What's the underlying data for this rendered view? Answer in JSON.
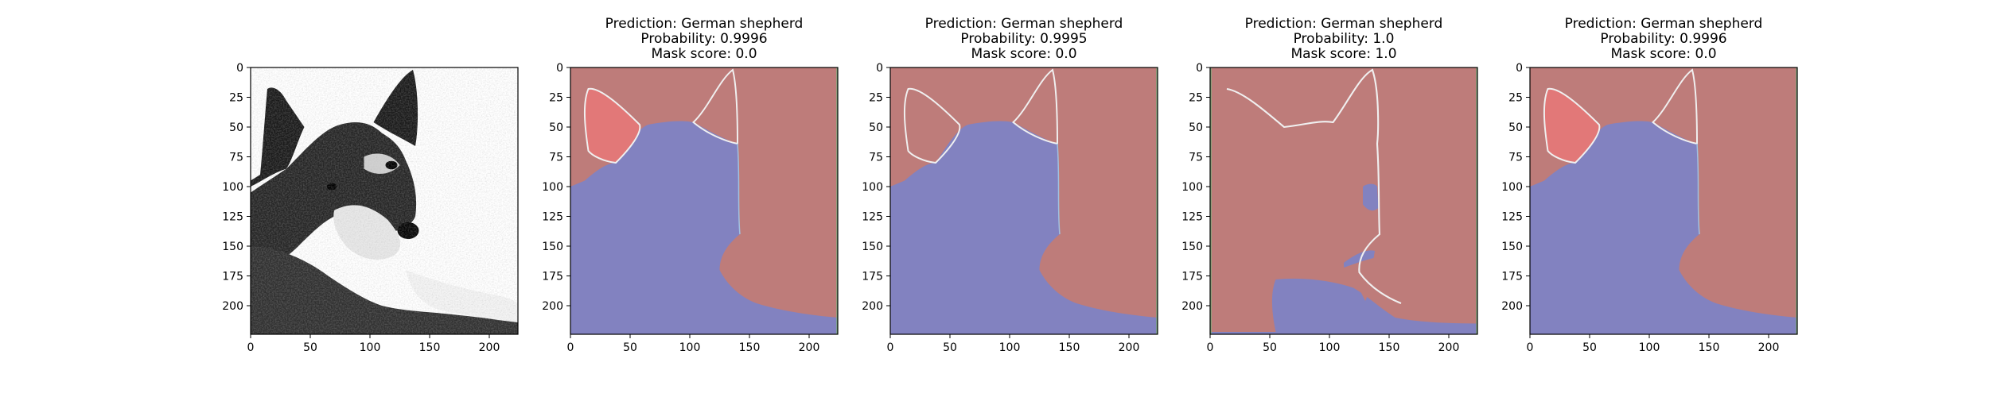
{
  "figure": {
    "colors": {
      "region_red": "#be7c7a",
      "region_blue": "#8282c0",
      "region_pink": "#e27878",
      "edge_white": "#f0f0f0",
      "edge_green": "#7db07d"
    }
  },
  "chart_data": [
    {
      "type": "image",
      "title": "",
      "content": "dog-photo",
      "xlim": [
        0,
        224
      ],
      "ylim": [
        224,
        0
      ],
      "xticks": [
        "0",
        "50",
        "100",
        "150",
        "200"
      ],
      "yticks": [
        "0",
        "25",
        "50",
        "75",
        "100",
        "125",
        "150",
        "175",
        "200"
      ]
    },
    {
      "type": "image",
      "title_lines": [
        "Prediction: German shepherd",
        "Probability: 0.9996",
        "Mask score: 0.0"
      ],
      "content": "mask-a",
      "xlim": [
        0,
        224
      ],
      "ylim": [
        224,
        0
      ],
      "xticks": [
        "0",
        "50",
        "100",
        "150",
        "200"
      ],
      "yticks": [
        "0",
        "25",
        "50",
        "75",
        "100",
        "125",
        "150",
        "175",
        "200"
      ]
    },
    {
      "type": "image",
      "title_lines": [
        "Prediction: German shepherd",
        "Probability: 0.9995",
        "Mask score: 0.0"
      ],
      "content": "mask-b",
      "xlim": [
        0,
        224
      ],
      "ylim": [
        224,
        0
      ],
      "xticks": [
        "0",
        "50",
        "100",
        "150",
        "200"
      ],
      "yticks": [
        "0",
        "25",
        "50",
        "75",
        "100",
        "125",
        "150",
        "175",
        "200"
      ]
    },
    {
      "type": "image",
      "title_lines": [
        "Prediction: German shepherd",
        "Probability: 1.0",
        "Mask score: 1.0"
      ],
      "content": "mask-c",
      "xlim": [
        0,
        224
      ],
      "ylim": [
        224,
        0
      ],
      "xticks": [
        "0",
        "50",
        "100",
        "150",
        "200"
      ],
      "yticks": [
        "0",
        "25",
        "50",
        "75",
        "100",
        "125",
        "150",
        "175",
        "200"
      ]
    },
    {
      "type": "image",
      "title_lines": [
        "Prediction: German shepherd",
        "Probability: 0.9996",
        "Mask score: 0.0"
      ],
      "content": "mask-a",
      "xlim": [
        0,
        224
      ],
      "ylim": [
        224,
        0
      ],
      "xticks": [
        "0",
        "50",
        "100",
        "150",
        "200"
      ],
      "yticks": [
        "0",
        "25",
        "50",
        "75",
        "100",
        "125",
        "150",
        "175",
        "200"
      ]
    }
  ]
}
